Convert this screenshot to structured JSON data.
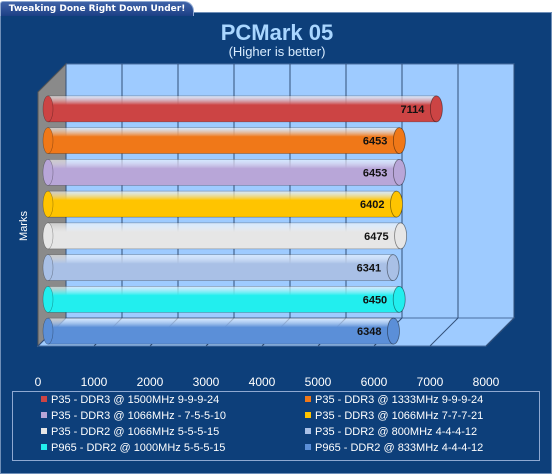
{
  "banner": "Tweaking Done Right Down Under!",
  "chart_data": {
    "type": "bar",
    "orientation": "horizontal",
    "title": "PCMark 05",
    "subtitle": "(Higher is better)",
    "ylabel": "Marks",
    "xlim": [
      0,
      8000
    ],
    "xticks": [
      "0",
      "1000",
      "2000",
      "3000",
      "4000",
      "5000",
      "6000",
      "7000",
      "8000"
    ],
    "grid": true,
    "legend_position": "bottom",
    "series": [
      {
        "name": "P35 - DDR3 @ 1500MHz 9-9-9-24",
        "value": 7114,
        "color": "#cc4444"
      },
      {
        "name": "P35 - DDR3 @ 1333MHz 9-9-9-24",
        "value": 6453,
        "color": "#f07818"
      },
      {
        "name": "P35 - DDR3 @ 1066MHz - 7-5-5-10",
        "value": 6453,
        "color": "#b8a6d8"
      },
      {
        "name": "P35 - DDR3 @ 1066MHz 7-7-7-21",
        "value": 6402,
        "color": "#ffc400"
      },
      {
        "name": "P35 - DDR2 @ 1066MHz 5-5-5-15",
        "value": 6475,
        "color": "#e6e6e6"
      },
      {
        "name": "P35 - DDR2 @ 800MHz 4-4-4-12",
        "value": 6341,
        "color": "#a9c0e6"
      },
      {
        "name": "P965 - DDR2 @ 1000MHz 5-5-5-15",
        "value": 6450,
        "color": "#22eeee"
      },
      {
        "name": "P965 - DDR2 @ 833MHz 4-4-4-12",
        "value": 6348,
        "color": "#5b8fd8"
      }
    ]
  }
}
